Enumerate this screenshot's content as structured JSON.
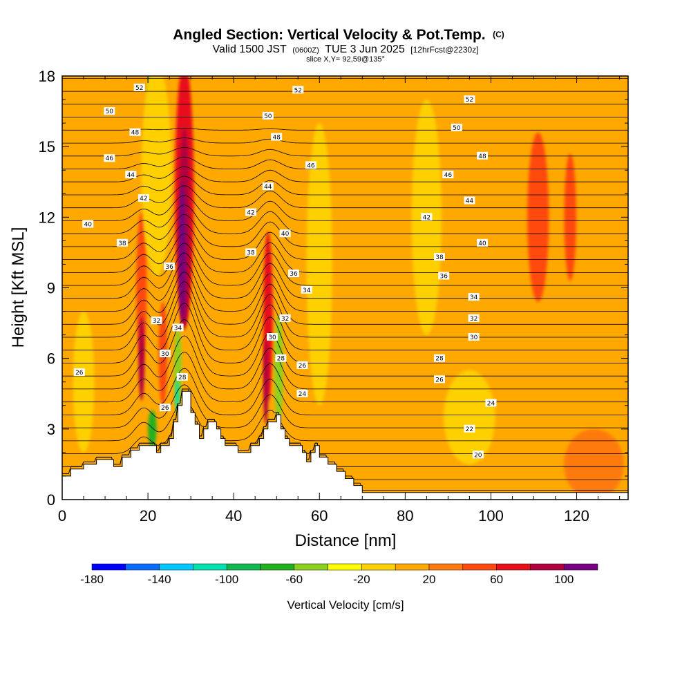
{
  "chart_data": {
    "type": "heatmap",
    "title": {
      "main": "Angled Section: Vertical Velocity & Pot.Temp.",
      "main_suffix": "(C)",
      "valid_prefix": "Valid 1500 JST",
      "valid_zulu": "(0600Z)",
      "valid_date": "TUE 3 Jun 2025",
      "forecast": "[12hrFcst@2230z]",
      "slice": "slice X,Y= 92,59@135°"
    },
    "xlabel": "Distance [nm]",
    "ylabel": "Height [Kft MSL]",
    "xlim": [
      0,
      132
    ],
    "ylim": [
      0,
      18
    ],
    "x_ticks": [
      0,
      20,
      40,
      60,
      80,
      100,
      120
    ],
    "y_ticks": [
      0,
      3,
      6,
      9,
      12,
      15,
      18
    ],
    "x_tick_labels": [
      "0",
      "20",
      "40",
      "60",
      "80",
      "100",
      "120"
    ],
    "y_tick_labels": [
      "0",
      "3",
      "6",
      "9",
      "12",
      "15",
      "18"
    ],
    "colorbar": {
      "title": "Vertical Velocity [cm/s]",
      "levels": [
        -180,
        -160,
        -140,
        -120,
        -100,
        -80,
        -60,
        -40,
        -20,
        0,
        20,
        40,
        60,
        80,
        100,
        120
      ],
      "colors": [
        "#0000ff",
        "#0a6cff",
        "#00c8ff",
        "#00e0b0",
        "#10b850",
        "#22b020",
        "#8cd020",
        "#ffff00",
        "#ffd000",
        "#ffa800",
        "#ff7a10",
        "#ff4a10",
        "#e8101a",
        "#b00040",
        "#780080"
      ],
      "tick_values": [
        -180,
        -140,
        -100,
        -60,
        -20,
        20,
        60,
        100
      ],
      "tick_labels": [
        "-180",
        "-140",
        "-100",
        "-60",
        "-20",
        "20",
        "60",
        "100"
      ]
    },
    "terrain": [
      [
        0,
        1.0
      ],
      [
        2,
        1.0
      ],
      [
        2,
        1.3
      ],
      [
        5,
        1.3
      ],
      [
        5,
        1.5
      ],
      [
        8,
        1.5
      ],
      [
        8,
        1.7
      ],
      [
        12,
        1.7
      ],
      [
        12,
        1.4
      ],
      [
        14,
        1.4
      ],
      [
        14,
        1.8
      ],
      [
        16,
        1.8
      ],
      [
        16,
        2.1
      ],
      [
        18,
        2.1
      ],
      [
        18,
        2.3
      ],
      [
        22,
        2.3
      ],
      [
        22,
        2.0
      ],
      [
        23,
        2.0
      ],
      [
        23,
        2.3
      ],
      [
        25,
        2.3
      ],
      [
        25,
        2.6
      ],
      [
        26,
        2.6
      ],
      [
        26,
        3.3
      ],
      [
        27,
        3.3
      ],
      [
        27,
        4.0
      ],
      [
        28,
        4.0
      ],
      [
        28,
        4.6
      ],
      [
        30,
        4.6
      ],
      [
        30,
        3.7
      ],
      [
        31,
        3.7
      ],
      [
        31,
        3.2
      ],
      [
        32,
        3.2
      ],
      [
        32,
        2.6
      ],
      [
        33,
        2.6
      ],
      [
        33,
        3.0
      ],
      [
        34,
        3.0
      ],
      [
        34,
        3.3
      ],
      [
        36,
        3.3
      ],
      [
        36,
        3.0
      ],
      [
        37,
        3.0
      ],
      [
        37,
        2.6
      ],
      [
        38,
        2.6
      ],
      [
        38,
        2.3
      ],
      [
        41,
        2.3
      ],
      [
        41,
        2.0
      ],
      [
        44,
        2.0
      ],
      [
        44,
        2.3
      ],
      [
        46,
        2.3
      ],
      [
        46,
        2.6
      ],
      [
        47,
        2.6
      ],
      [
        47,
        3.0
      ],
      [
        48,
        3.0
      ],
      [
        48,
        3.3
      ],
      [
        50,
        3.3
      ],
      [
        50,
        3.6
      ],
      [
        51,
        3.6
      ],
      [
        51,
        3.0
      ],
      [
        52,
        3.0
      ],
      [
        52,
        2.6
      ],
      [
        53,
        2.6
      ],
      [
        53,
        2.3
      ],
      [
        56,
        2.3
      ],
      [
        56,
        2.0
      ],
      [
        57,
        2.0
      ],
      [
        57,
        1.6
      ],
      [
        58,
        1.6
      ],
      [
        58,
        2.0
      ],
      [
        59,
        2.0
      ],
      [
        59,
        2.3
      ],
      [
        60,
        2.3
      ],
      [
        60,
        1.8
      ],
      [
        62,
        1.8
      ],
      [
        62,
        1.5
      ],
      [
        64,
        1.5
      ],
      [
        64,
        1.2
      ],
      [
        66,
        1.2
      ],
      [
        66,
        0.9
      ],
      [
        68,
        0.9
      ],
      [
        68,
        0.6
      ],
      [
        70,
        0.6
      ],
      [
        70,
        0.3
      ],
      [
        132,
        0.3
      ]
    ],
    "velocity_features": [
      {
        "x": 28.5,
        "z": 13.0,
        "rx": 2.2,
        "rz": 5.6,
        "value": 60
      },
      {
        "x": 28.5,
        "z": 11.5,
        "rx": 1.3,
        "rz": 4.3,
        "value": 80
      },
      {
        "x": 28.0,
        "z": 10.5,
        "rx": 0.8,
        "rz": 3.0,
        "value": 110
      },
      {
        "x": 18.5,
        "z": 9.0,
        "rx": 1.2,
        "rz": 3.2,
        "value": 50
      },
      {
        "x": 18.5,
        "z": 6.0,
        "rx": 0.7,
        "rz": 1.8,
        "value": 90
      },
      {
        "x": 23.5,
        "z": 6.2,
        "rx": 1.0,
        "rz": 2.2,
        "value": 50
      },
      {
        "x": 48.0,
        "z": 7.8,
        "rx": 1.1,
        "rz": 3.6,
        "value": 60
      },
      {
        "x": 47.5,
        "z": 5.0,
        "rx": 0.6,
        "rz": 1.8,
        "value": 90
      },
      {
        "x": 21.0,
        "z": 16.8,
        "rx": 1.2,
        "rz": 1.6,
        "value": -60
      },
      {
        "x": 27.0,
        "z": 5.5,
        "rx": 0.9,
        "rz": 1.8,
        "value": -60
      },
      {
        "x": 26.8,
        "z": 4.4,
        "rx": 0.4,
        "rz": 0.7,
        "value": -120
      },
      {
        "x": 21.0,
        "z": 3.0,
        "rx": 1.0,
        "rz": 0.8,
        "value": -70
      },
      {
        "x": 50.5,
        "z": 5.5,
        "rx": 1.0,
        "rz": 2.4,
        "value": -60
      },
      {
        "x": 111.0,
        "z": 12.0,
        "rx": 2.5,
        "rz": 3.6,
        "value": 50
      },
      {
        "x": 118.5,
        "z": 12.0,
        "rx": 1.4,
        "rz": 2.7,
        "value": 45
      },
      {
        "x": 60.0,
        "z": 10.0,
        "rx": 3.0,
        "rz": 6.0,
        "value": -10
      },
      {
        "x": 85.0,
        "z": 12.0,
        "rx": 3.5,
        "rz": 5.0,
        "value": -10
      },
      {
        "x": 22.0,
        "z": 14.0,
        "rx": 3.5,
        "rz": 4.5,
        "value": -20
      },
      {
        "x": 5.0,
        "z": 5.0,
        "rx": 2.5,
        "rz": 3.0,
        "value": -10
      },
      {
        "x": 95.0,
        "z": 3.5,
        "rx": 6.0,
        "rz": 2.0,
        "value": -10
      },
      {
        "x": 124.0,
        "z": 1.5,
        "rx": 7.0,
        "rz": 1.5,
        "value": 25
      }
    ],
    "theta_contour_labels": [
      {
        "x": 18,
        "z": 17.5,
        "text": "52"
      },
      {
        "x": 55,
        "z": 17.4,
        "text": "52"
      },
      {
        "x": 95,
        "z": 17.0,
        "text": "52"
      },
      {
        "x": 11,
        "z": 16.5,
        "text": "50"
      },
      {
        "x": 48,
        "z": 16.3,
        "text": "50"
      },
      {
        "x": 92,
        "z": 15.8,
        "text": "50"
      },
      {
        "x": 17,
        "z": 15.6,
        "text": "48"
      },
      {
        "x": 50,
        "z": 15.4,
        "text": "48"
      },
      {
        "x": 98,
        "z": 14.6,
        "text": "48"
      },
      {
        "x": 11,
        "z": 14.5,
        "text": "46"
      },
      {
        "x": 58,
        "z": 14.2,
        "text": "46"
      },
      {
        "x": 90,
        "z": 13.8,
        "text": "46"
      },
      {
        "x": 16,
        "z": 13.8,
        "text": "44"
      },
      {
        "x": 48,
        "z": 13.3,
        "text": "44"
      },
      {
        "x": 95,
        "z": 12.7,
        "text": "44"
      },
      {
        "x": 19,
        "z": 12.8,
        "text": "42"
      },
      {
        "x": 44,
        "z": 12.2,
        "text": "42"
      },
      {
        "x": 85,
        "z": 12.0,
        "text": "42"
      },
      {
        "x": 6,
        "z": 11.7,
        "text": "40"
      },
      {
        "x": 52,
        "z": 11.3,
        "text": "40"
      },
      {
        "x": 98,
        "z": 10.9,
        "text": "40"
      },
      {
        "x": 14,
        "z": 10.9,
        "text": "38"
      },
      {
        "x": 44,
        "z": 10.5,
        "text": "38"
      },
      {
        "x": 88,
        "z": 10.3,
        "text": "38"
      },
      {
        "x": 25,
        "z": 9.9,
        "text": "36"
      },
      {
        "x": 54,
        "z": 9.6,
        "text": "36"
      },
      {
        "x": 89,
        "z": 9.5,
        "text": "36"
      },
      {
        "x": 57,
        "z": 8.9,
        "text": "34"
      },
      {
        "x": 96,
        "z": 8.6,
        "text": "34"
      },
      {
        "x": 27,
        "z": 7.3,
        "text": "34"
      },
      {
        "x": 22,
        "z": 7.6,
        "text": "32"
      },
      {
        "x": 52,
        "z": 7.7,
        "text": "32"
      },
      {
        "x": 96,
        "z": 7.7,
        "text": "32"
      },
      {
        "x": 24,
        "z": 6.2,
        "text": "30"
      },
      {
        "x": 49,
        "z": 6.9,
        "text": "30"
      },
      {
        "x": 96,
        "z": 6.9,
        "text": "30"
      },
      {
        "x": 28,
        "z": 5.2,
        "text": "28"
      },
      {
        "x": 51,
        "z": 6.0,
        "text": "28"
      },
      {
        "x": 88,
        "z": 6.0,
        "text": "28"
      },
      {
        "x": 4,
        "z": 5.4,
        "text": "26"
      },
      {
        "x": 56,
        "z": 5.7,
        "text": "26"
      },
      {
        "x": 88,
        "z": 5.1,
        "text": "26"
      },
      {
        "x": 56,
        "z": 4.5,
        "text": "24"
      },
      {
        "x": 100,
        "z": 4.1,
        "text": "24"
      },
      {
        "x": 24,
        "z": 3.9,
        "text": "26"
      },
      {
        "x": 95,
        "z": 3.0,
        "text": "22"
      },
      {
        "x": 97,
        "z": 1.9,
        "text": "20"
      }
    ]
  }
}
